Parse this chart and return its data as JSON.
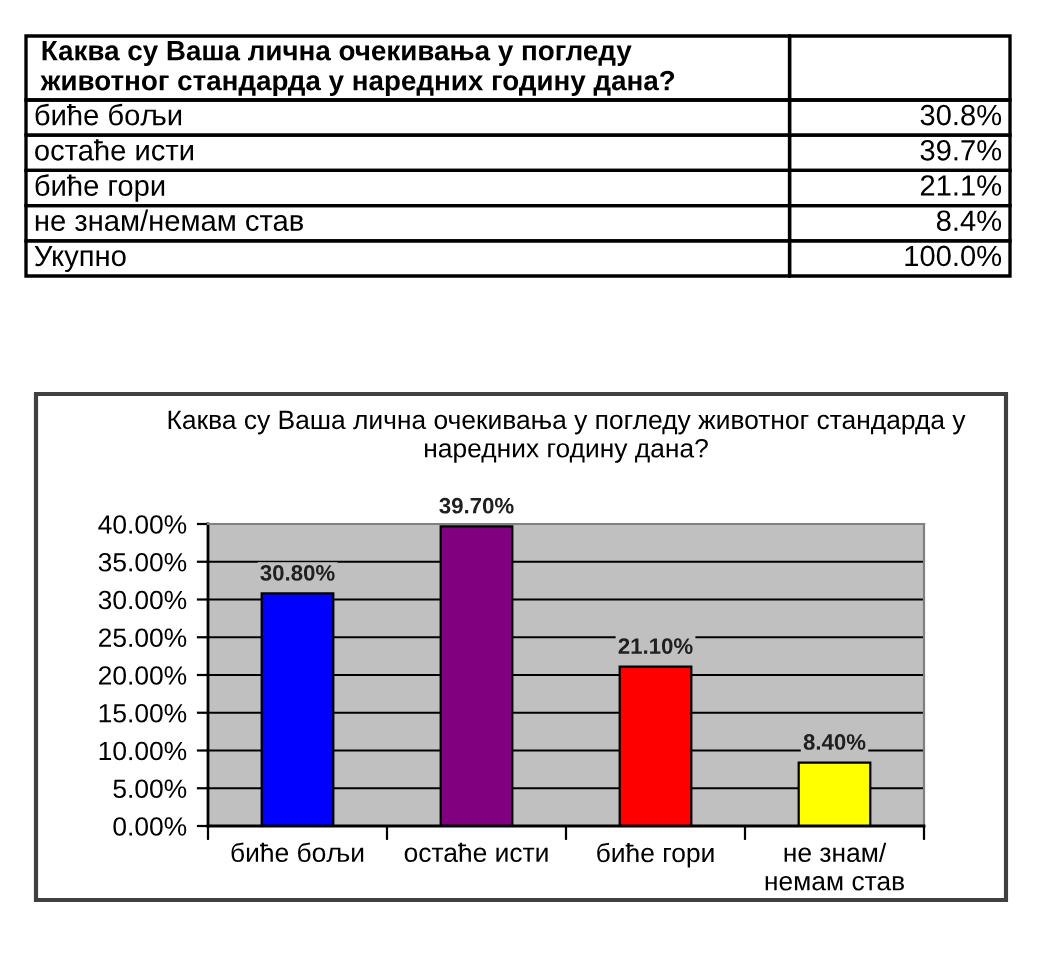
{
  "chart_data": [
    {
      "type": "other",
      "title": "Каква су Ваша лична очекивања у погледу\nживотног стандарда у наредних годину дана?",
      "categories": [
        "биће бољи",
        "остаће исти",
        "биће гори",
        "не знам/немам став",
        "Укупно"
      ],
      "values": [
        30.8,
        39.7,
        21.1,
        8.4,
        100.0
      ],
      "value_labels": [
        "30.8%",
        "39.7%",
        "21.1%",
        "8.4%",
        "100.0%"
      ]
    },
    {
      "type": "bar",
      "title": "Каква су Ваша лична очекивања у погледу животног стандарда у\nнаредних годину дана?",
      "categories": [
        "биће бољи",
        "остаће исти",
        "биће гори",
        "не знам/\nнемам став"
      ],
      "values": [
        30.8,
        39.7,
        21.1,
        8.4
      ],
      "colors": [
        "#0000ff",
        "#800080",
        "#ff0000",
        "#ffff00"
      ],
      "value_labels": [
        "30.80%",
        "39.70%",
        "21.10%",
        "8.40%"
      ],
      "ylim": [
        0,
        40
      ],
      "yticks": [
        {
          "value": 0,
          "label": "0.00%"
        },
        {
          "value": 5,
          "label": "5.00%"
        },
        {
          "value": 10,
          "label": "10.00%"
        },
        {
          "value": 15,
          "label": "15.00%"
        },
        {
          "value": 20,
          "label": "20.00%"
        },
        {
          "value": 25,
          "label": "25.00%"
        },
        {
          "value": 30,
          "label": "30.00%"
        },
        {
          "value": 35,
          "label": "35.00%"
        },
        {
          "value": 40,
          "label": "40.00%"
        }
      ],
      "grid": "y"
    }
  ]
}
